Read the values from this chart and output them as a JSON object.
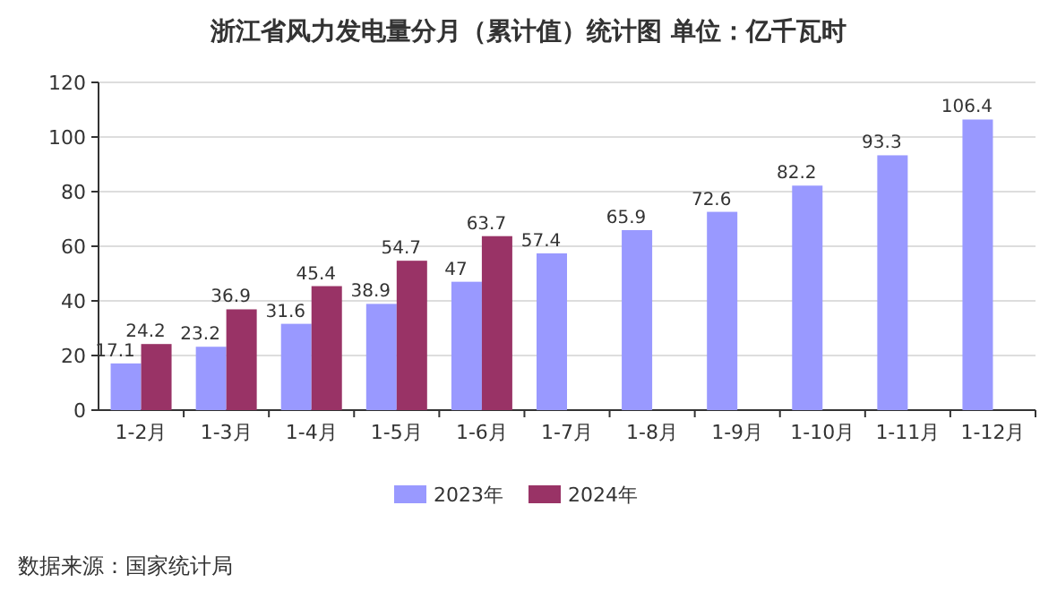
{
  "chart_data": {
    "type": "bar",
    "title": "浙江省风力发电量分月（累计值）统计图 单位：亿千瓦时",
    "categories": [
      "1-2月",
      "1-3月",
      "1-4月",
      "1-5月",
      "1-6月",
      "1-7月",
      "1-8月",
      "1-9月",
      "1-10月",
      "1-11月",
      "1-12月"
    ],
    "series": [
      {
        "name": "2023年",
        "color": "#9999ff",
        "values": [
          17.1,
          23.2,
          31.6,
          38.9,
          47,
          57.4,
          65.9,
          72.6,
          82.2,
          93.3,
          106.4
        ]
      },
      {
        "name": "2024年",
        "color": "#993366",
        "values": [
          24.2,
          36.9,
          45.4,
          54.7,
          63.7,
          null,
          null,
          null,
          null,
          null,
          null
        ]
      }
    ],
    "ylim": [
      0,
      120
    ],
    "yticks": [
      0,
      20,
      40,
      60,
      80,
      100,
      120
    ],
    "grid": "y",
    "legend": "bottom",
    "data_labels": true,
    "annotations": [
      "数据来源：国家统计局"
    ]
  }
}
